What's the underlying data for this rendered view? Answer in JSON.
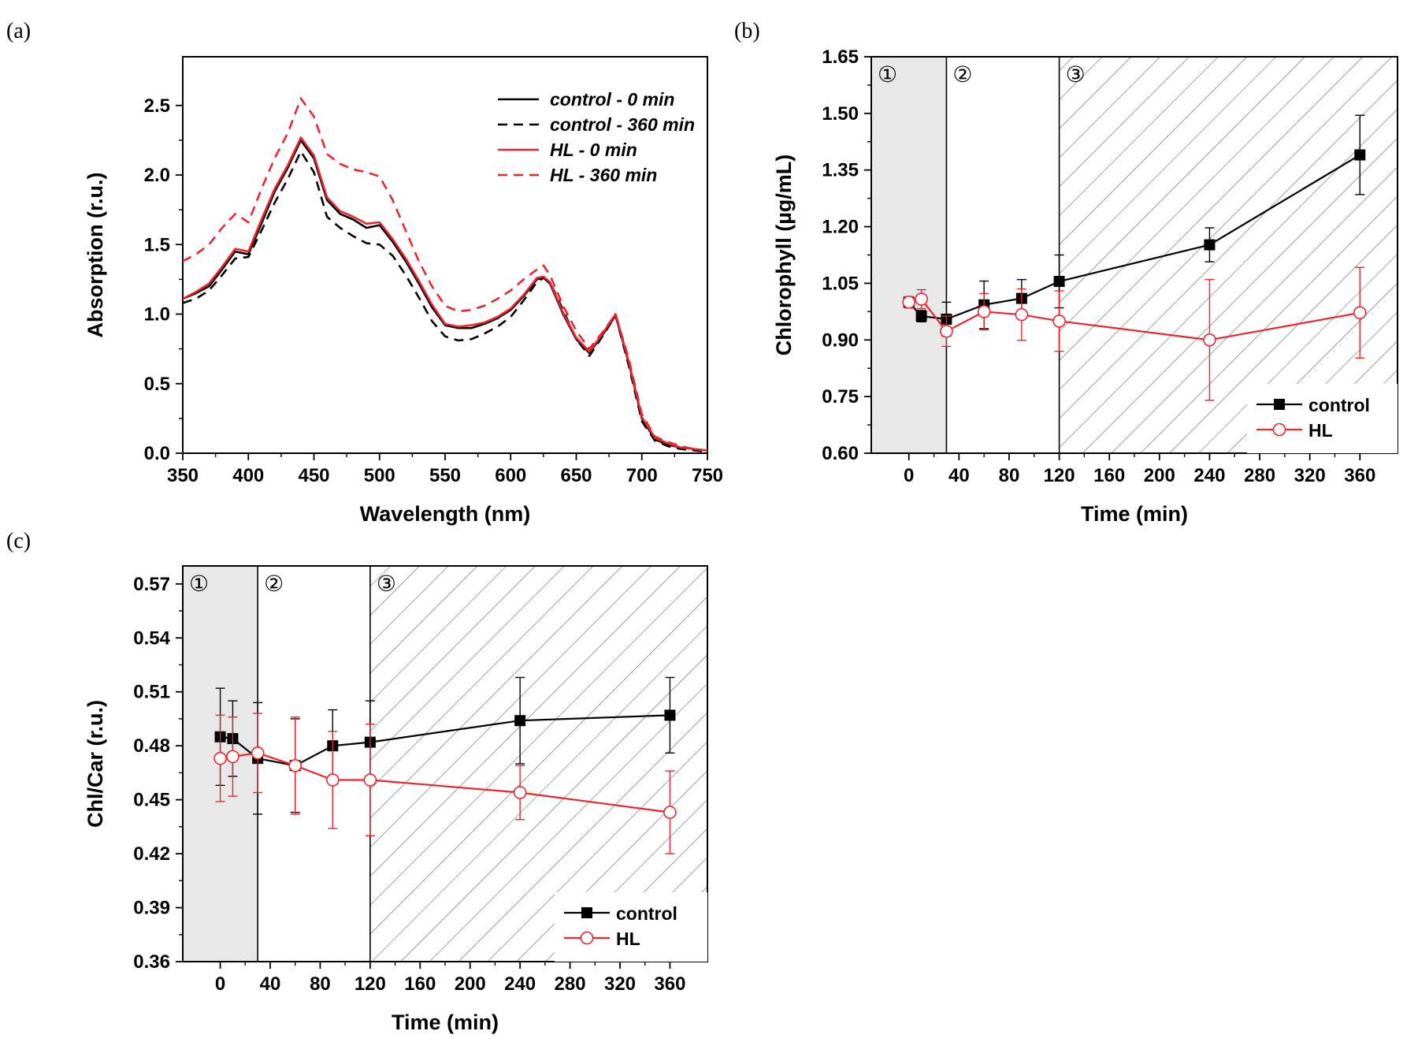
{
  "chart_data": [
    {
      "panel": "(a)",
      "type": "line",
      "xlabel": "Wavelength (nm)",
      "ylabel": "Absorption (r.u.)",
      "xlim": [
        350,
        750
      ],
      "ylim": [
        0.0,
        2.85
      ],
      "xticks": [
        350,
        400,
        450,
        500,
        550,
        600,
        650,
        700,
        750
      ],
      "yticks": [
        0.0,
        0.5,
        1.0,
        1.5,
        2.0,
        2.5
      ],
      "ytick_labels": [
        "0.0",
        "0.5",
        "1.0",
        "1.5",
        "2.0",
        "2.5"
      ],
      "x": [
        350,
        360,
        370,
        380,
        390,
        400,
        410,
        420,
        430,
        440,
        450,
        460,
        470,
        480,
        490,
        500,
        510,
        520,
        530,
        540,
        550,
        560,
        570,
        580,
        590,
        600,
        610,
        620,
        625,
        630,
        640,
        650,
        660,
        670,
        680,
        690,
        700,
        710,
        720,
        730,
        740,
        750
      ],
      "series": [
        {
          "name": "control  -  0 min",
          "color": "#000000",
          "dash": false,
          "values": [
            1.11,
            1.15,
            1.2,
            1.32,
            1.45,
            1.43,
            1.65,
            1.88,
            2.05,
            2.25,
            2.12,
            1.82,
            1.72,
            1.68,
            1.62,
            1.64,
            1.52,
            1.38,
            1.22,
            1.05,
            0.92,
            0.9,
            0.9,
            0.93,
            0.97,
            1.03,
            1.13,
            1.25,
            1.26,
            1.22,
            1.0,
            0.82,
            0.72,
            0.85,
            0.99,
            0.65,
            0.25,
            0.1,
            0.06,
            0.04,
            0.03,
            0.02
          ]
        },
        {
          "name": "control  -  360 min",
          "color": "#000000",
          "dash": true,
          "values": [
            1.08,
            1.11,
            1.17,
            1.28,
            1.4,
            1.41,
            1.6,
            1.8,
            1.97,
            2.17,
            2.02,
            1.7,
            1.62,
            1.56,
            1.51,
            1.5,
            1.42,
            1.28,
            1.12,
            0.95,
            0.84,
            0.81,
            0.82,
            0.86,
            0.91,
            0.98,
            1.1,
            1.23,
            1.26,
            1.23,
            1.03,
            0.82,
            0.7,
            0.84,
            0.99,
            0.63,
            0.23,
            0.09,
            0.05,
            0.03,
            0.02,
            0.01
          ]
        },
        {
          "name": "HL  -  0 min",
          "color": "#e8262b",
          "dash": false,
          "values": [
            1.11,
            1.16,
            1.22,
            1.34,
            1.47,
            1.45,
            1.68,
            1.9,
            2.07,
            2.27,
            2.14,
            1.84,
            1.74,
            1.7,
            1.65,
            1.66,
            1.54,
            1.4,
            1.24,
            1.07,
            0.93,
            0.91,
            0.92,
            0.94,
            0.98,
            1.04,
            1.14,
            1.26,
            1.27,
            1.23,
            1.01,
            0.83,
            0.73,
            0.86,
            1.0,
            0.66,
            0.26,
            0.11,
            0.07,
            0.04,
            0.03,
            0.02
          ]
        },
        {
          "name": "HL  -  360 min",
          "color": "#e8262b",
          "dash": true,
          "values": [
            1.38,
            1.43,
            1.5,
            1.62,
            1.72,
            1.66,
            1.9,
            2.12,
            2.3,
            2.55,
            2.42,
            2.15,
            2.08,
            2.04,
            2.02,
            1.99,
            1.82,
            1.6,
            1.38,
            1.2,
            1.06,
            1.02,
            1.03,
            1.06,
            1.11,
            1.17,
            1.25,
            1.32,
            1.35,
            1.28,
            1.06,
            0.88,
            0.75,
            0.87,
            1.0,
            0.68,
            0.28,
            0.12,
            0.08,
            0.05,
            0.03,
            0.02
          ]
        }
      ]
    },
    {
      "panel": "(b)",
      "type": "line",
      "xlabel": "Time (min)",
      "ylabel": "Chlorophyll (µg/mL)",
      "xlim": [
        -30,
        390
      ],
      "ylim": [
        0.6,
        1.65
      ],
      "xticks": [
        0,
        40,
        80,
        120,
        160,
        200,
        240,
        280,
        320,
        360
      ],
      "yticks": [
        0.6,
        0.75,
        0.9,
        1.05,
        1.2,
        1.35,
        1.5,
        1.65
      ],
      "ytick_labels": [
        "0.60",
        "0.75",
        "0.90",
        "1.05",
        "1.20",
        "1.35",
        "1.50",
        "1.65"
      ],
      "regions": [
        {
          "label": "①",
          "x0": -30,
          "x1": 30,
          "style": "gray"
        },
        {
          "label": "②",
          "x0": 30,
          "x1": 120,
          "style": "white"
        },
        {
          "label": "③",
          "x0": 120,
          "x1": 390,
          "style": "hatch"
        }
      ],
      "series": [
        {
          "name": "control",
          "color": "#000000",
          "marker": "square",
          "x": [
            0,
            10,
            30,
            60,
            90,
            120,
            240,
            360
          ],
          "values": [
            1.0,
            0.963,
            0.955,
            0.993,
            1.01,
            1.055,
            1.152,
            1.39
          ],
          "err": [
            0.015,
            0.015,
            0.045,
            0.063,
            0.05,
            0.07,
            0.045,
            0.105
          ]
        },
        {
          "name": "HL",
          "color": "#e8262b",
          "marker": "circle",
          "x": [
            0,
            10,
            30,
            60,
            90,
            120,
            240,
            360
          ],
          "values": [
            1.0,
            1.008,
            0.923,
            0.975,
            0.967,
            0.95,
            0.9,
            0.972
          ],
          "err": [
            0.015,
            0.025,
            0.04,
            0.048,
            0.068,
            0.08,
            0.16,
            0.12
          ]
        }
      ]
    },
    {
      "panel": "(c)",
      "type": "line",
      "xlabel": "Time (min)",
      "ylabel": "Chl/Car (r.u.)",
      "xlim": [
        -30,
        390
      ],
      "ylim": [
        0.36,
        0.58
      ],
      "xticks": [
        0,
        40,
        80,
        120,
        160,
        200,
        240,
        280,
        320,
        360
      ],
      "yticks": [
        0.36,
        0.39,
        0.42,
        0.45,
        0.48,
        0.51,
        0.54,
        0.57
      ],
      "ytick_labels": [
        "0.36",
        "0.39",
        "0.42",
        "0.45",
        "0.48",
        "0.51",
        "0.54",
        "0.57"
      ],
      "regions": [
        {
          "label": "①",
          "x0": -30,
          "x1": 30,
          "style": "gray"
        },
        {
          "label": "②",
          "x0": 30,
          "x1": 120,
          "style": "white"
        },
        {
          "label": "③",
          "x0": 120,
          "x1": 390,
          "style": "hatch"
        }
      ],
      "series": [
        {
          "name": "control",
          "color": "#000000",
          "marker": "square",
          "x": [
            0,
            10,
            30,
            60,
            90,
            120,
            240,
            360
          ],
          "values": [
            0.485,
            0.484,
            0.473,
            0.469,
            0.48,
            0.482,
            0.494,
            0.497
          ],
          "err": [
            0.027,
            0.021,
            0.031,
            0.026,
            0.02,
            0.023,
            0.024,
            0.021
          ]
        },
        {
          "name": "HL",
          "color": "#e8262b",
          "marker": "circle",
          "x": [
            0,
            10,
            30,
            60,
            90,
            120,
            240,
            360
          ],
          "values": [
            0.473,
            0.474,
            0.476,
            0.469,
            0.461,
            0.461,
            0.454,
            0.443
          ],
          "err": [
            0.024,
            0.022,
            0.022,
            0.027,
            0.027,
            0.031,
            0.015,
            0.023
          ]
        }
      ]
    }
  ]
}
